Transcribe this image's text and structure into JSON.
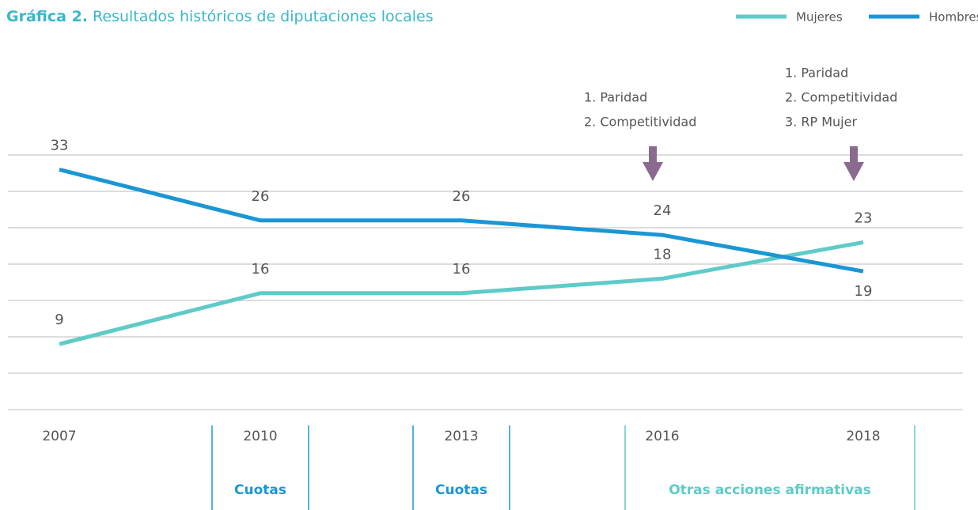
{
  "chart_data": {
    "type": "line",
    "title_label": "Gráfica 2.",
    "title": "Resultados históricos de diputaciones locales",
    "categories": [
      "2007",
      "2010",
      "2013",
      "2016",
      "2018"
    ],
    "series": [
      {
        "name": "Mujeres",
        "color": "#5ecbc8",
        "values": [
          9,
          16,
          16,
          18,
          23
        ]
      },
      {
        "name": "Hombres",
        "color": "#1a96d4",
        "values": [
          33,
          26,
          26,
          24,
          19
        ]
      }
    ],
    "ylim": [
      0,
      35
    ],
    "yticks": [
      0,
      5,
      10,
      15,
      20,
      25,
      30,
      35
    ],
    "grid": true,
    "legend": "top-right",
    "annotations": [
      {
        "category": 3,
        "lines": [
          "1. Paridad",
          "2. Competitividad"
        ]
      },
      {
        "category": 4,
        "lines": [
          "1. Paridad",
          "2. Competitividad",
          "3. RP Mujer"
        ]
      }
    ],
    "periods": [
      {
        "label": "Cuotas",
        "color": "#1a96d4"
      },
      {
        "label": "Cuotas",
        "color": "#1a96d4"
      },
      {
        "label": "Otras acciones afirmativas",
        "color": "#5ecbc8"
      }
    ]
  }
}
